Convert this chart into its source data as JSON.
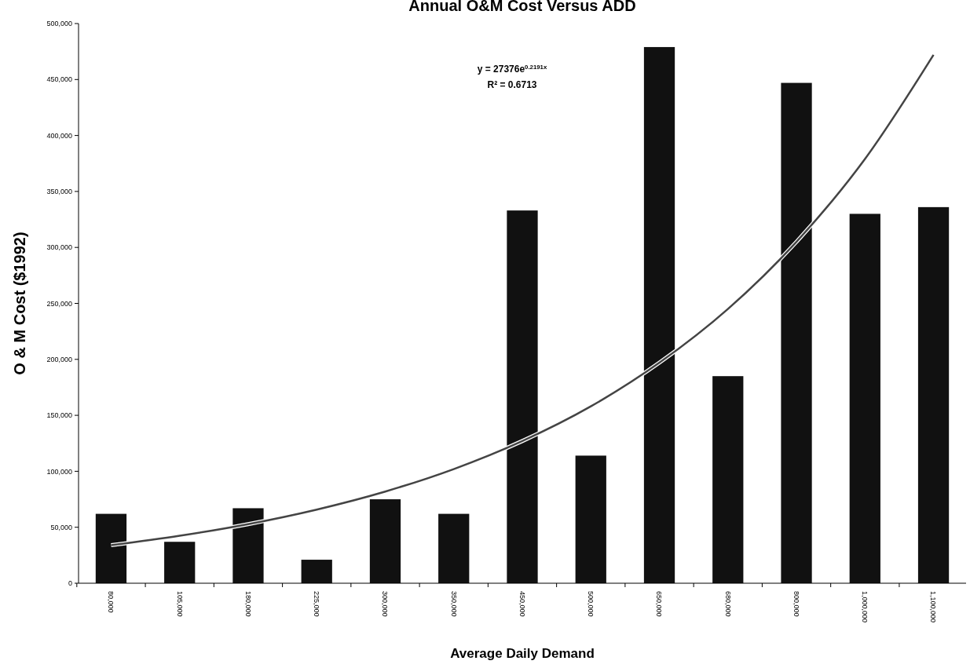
{
  "chart_data": {
    "type": "bar",
    "title": "Annual O&M Cost Versus ADD",
    "xlabel": "Average Daily Demand",
    "ylabel": "O & M Cost ($1992)",
    "categories": [
      "80,000",
      "105,000",
      "180,000",
      "225,000",
      "300,000",
      "350,000",
      "450,000",
      "500,000",
      "650,000",
      "680,000",
      "800,000",
      "1,000,000",
      "1,100,000"
    ],
    "series": [
      {
        "color": "#111111",
        "values": [
          62000,
          37000,
          67000,
          21000,
          75000,
          62000,
          333000,
          114000,
          479000,
          185000,
          447000,
          330000,
          336000
        ]
      },
      {
        "type": "line",
        "color": "#444444",
        "values": [
          34000,
          42400,
          52800,
          65800,
          81900,
          102000,
          127000,
          158000,
          197000,
          245000,
          305000,
          379000,
          472000
        ]
      }
    ],
    "ylim": [
      0,
      500000
    ],
    "yticks": [
      {
        "value": 0,
        "label": "0"
      },
      {
        "value": 50000,
        "label": "50,000"
      },
      {
        "value": 100000,
        "label": "100,000"
      },
      {
        "value": 150000,
        "label": "150,000"
      },
      {
        "value": 200000,
        "label": "200,000"
      },
      {
        "value": 250000,
        "label": "250,000"
      },
      {
        "value": 300000,
        "label": "300,000"
      },
      {
        "value": 350000,
        "label": "350,000"
      },
      {
        "value": 400000,
        "label": "400,000"
      },
      {
        "value": 450000,
        "label": "450,000"
      },
      {
        "value": 500000,
        "label": "500,000"
      }
    ],
    "annotations": [
      "y = 27376e$^{0.2191x}$",
      "R² = 0.6713"
    ],
    "marker": "none"
  }
}
